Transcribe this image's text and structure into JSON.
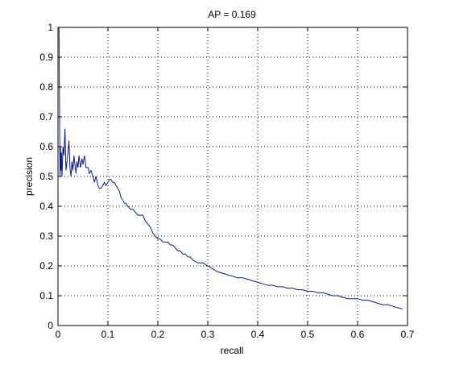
{
  "chart_data": {
    "type": "line",
    "title": "AP = 0.169",
    "xlabel": "recall",
    "ylabel": "precision",
    "xlim": [
      0,
      0.7
    ],
    "ylim": [
      0,
      1
    ],
    "xticks": [
      0,
      0.1,
      0.2,
      0.3,
      0.4,
      0.5,
      0.6,
      0.7
    ],
    "yticks": [
      0,
      0.1,
      0.2,
      0.3,
      0.4,
      0.5,
      0.6,
      0.7,
      0.8,
      0.9,
      1
    ],
    "xtick_labels": [
      "0",
      "0.1",
      "0.2",
      "0.3",
      "0.4",
      "0.5",
      "0.6",
      "0.7"
    ],
    "ytick_labels": [
      "0",
      "0.1",
      "0.2",
      "0.3",
      "0.4",
      "0.5",
      "0.6",
      "0.7",
      "0.8",
      "0.9",
      "1"
    ],
    "grid": true,
    "grid_style": "dotted",
    "line_color": "#0a1a8c",
    "series": [
      {
        "x": [
          0,
          0.002,
          0.003,
          0.004,
          0.005,
          0.006,
          0.007,
          0.008,
          0.009,
          0.01,
          0.012,
          0.014,
          0.016,
          0.018,
          0.02,
          0.022,
          0.024,
          0.026,
          0.028,
          0.03,
          0.032,
          0.034,
          0.036,
          0.038,
          0.04,
          0.042,
          0.045,
          0.048,
          0.05,
          0.053,
          0.056,
          0.06,
          0.063,
          0.066,
          0.07,
          0.073,
          0.076,
          0.08,
          0.083,
          0.086,
          0.09,
          0.093,
          0.096,
          0.1,
          0.103,
          0.106,
          0.11,
          0.113,
          0.116,
          0.12,
          0.123,
          0.126,
          0.13,
          0.133,
          0.136,
          0.14,
          0.145,
          0.15,
          0.155,
          0.16,
          0.165,
          0.17,
          0.175,
          0.18,
          0.185,
          0.19,
          0.195,
          0.2,
          0.205,
          0.21,
          0.215,
          0.22,
          0.225,
          0.23,
          0.235,
          0.24,
          0.245,
          0.25,
          0.255,
          0.26,
          0.265,
          0.27,
          0.28,
          0.29,
          0.3,
          0.31,
          0.32,
          0.33,
          0.34,
          0.35,
          0.36,
          0.37,
          0.38,
          0.39,
          0.4,
          0.41,
          0.42,
          0.43,
          0.44,
          0.45,
          0.46,
          0.47,
          0.48,
          0.49,
          0.5,
          0.51,
          0.52,
          0.53,
          0.54,
          0.55,
          0.56,
          0.57,
          0.58,
          0.59,
          0.6,
          0.61,
          0.62,
          0.63,
          0.64,
          0.65,
          0.66,
          0.67,
          0.68,
          0.69
        ],
        "y": [
          1,
          1,
          0.75,
          0.5,
          0.6,
          0.52,
          0.58,
          0.5,
          0.55,
          0.6,
          0.57,
          0.66,
          0.52,
          0.55,
          0.58,
          0.62,
          0.53,
          0.5,
          0.55,
          0.52,
          0.57,
          0.54,
          0.51,
          0.55,
          0.53,
          0.57,
          0.53,
          0.56,
          0.54,
          0.57,
          0.53,
          0.53,
          0.51,
          0.52,
          0.5,
          0.48,
          0.5,
          0.47,
          0.46,
          0.46,
          0.47,
          0.48,
          0.47,
          0.48,
          0.49,
          0.49,
          0.48,
          0.48,
          0.47,
          0.46,
          0.45,
          0.43,
          0.42,
          0.41,
          0.41,
          0.4,
          0.39,
          0.39,
          0.38,
          0.37,
          0.37,
          0.37,
          0.35,
          0.34,
          0.33,
          0.31,
          0.3,
          0.29,
          0.29,
          0.28,
          0.28,
          0.28,
          0.27,
          0.27,
          0.26,
          0.25,
          0.25,
          0.24,
          0.24,
          0.23,
          0.23,
          0.22,
          0.21,
          0.21,
          0.2,
          0.19,
          0.18,
          0.175,
          0.17,
          0.165,
          0.16,
          0.16,
          0.155,
          0.15,
          0.145,
          0.14,
          0.135,
          0.135,
          0.13,
          0.13,
          0.125,
          0.125,
          0.12,
          0.12,
          0.115,
          0.115,
          0.11,
          0.11,
          0.105,
          0.1,
          0.1,
          0.095,
          0.09,
          0.09,
          0.09,
          0.085,
          0.085,
          0.08,
          0.075,
          0.07,
          0.07,
          0.065,
          0.06,
          0.055
        ]
      }
    ]
  }
}
